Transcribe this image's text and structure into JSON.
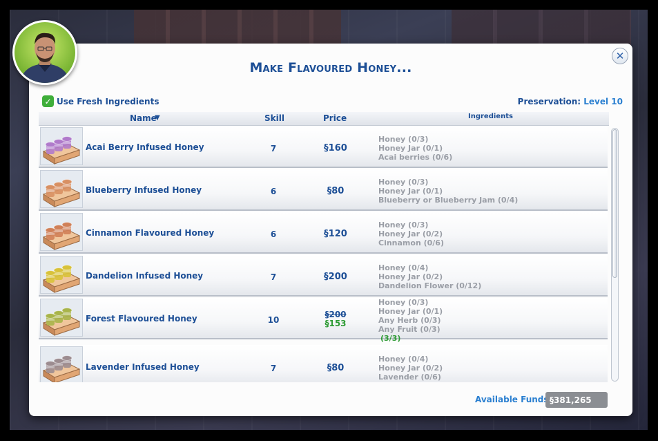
{
  "dialog": {
    "title": "Make Flavoured Honey...",
    "close_icon": "✕",
    "currency_symbol": "§"
  },
  "options": {
    "fresh_ingredients_label": "Use Fresh Ingredients",
    "fresh_ingredients_checked": true,
    "checkmark_icon": "✓",
    "preservation_label": "Preservation:",
    "preservation_value": "Level 10"
  },
  "table": {
    "headers": {
      "name": "Name",
      "sort_icon": "▼",
      "skill": "Skill",
      "price": "Price",
      "ingredients": "Ingredients"
    },
    "rows": [
      {
        "name": "Acai Berry Infused Honey",
        "skill": "7",
        "price": "§160",
        "jar_color": "#b07acb",
        "ingredients": [
          "Honey (0/3)",
          "Honey Jar (0/1)",
          "Acai berries (0/6)"
        ]
      },
      {
        "name": "Blueberry Infused Honey",
        "skill": "6",
        "price": "§80",
        "jar_color": "#d89063",
        "ingredients": [
          "Honey (0/3)",
          "Honey Jar (0/1)",
          "Blueberry or Blueberry Jam (0/4)"
        ]
      },
      {
        "name": "Cinnamon Flavoured Honey",
        "skill": "6",
        "price": "§120",
        "jar_color": "#d08058",
        "ingredients": [
          "Honey (0/3)",
          "Honey Jar (0/2)",
          "Cinnamon (0/6)"
        ]
      },
      {
        "name": "Dandelion Infused Honey",
        "skill": "7",
        "price": "§200",
        "jar_color": "#d8c23a",
        "ingredients": [
          "Honey (0/4)",
          "Honey Jar (0/2)",
          "Dandelion Flower (0/12)"
        ]
      },
      {
        "name": "Forest Flavoured Honey",
        "skill": "10",
        "price_old": "§200",
        "price_new": "§153",
        "jar_color": "#a8b44a",
        "ingredients": [
          "Honey (0/3)",
          "Honey Jar (0/1)",
          "Any Herb (0/3)",
          "Any Fruit (0/3)"
        ],
        "ingredients_available": "(3/3)"
      },
      {
        "name": "Lavender Infused Honey",
        "skill": "7",
        "price": "§80",
        "jar_color": "#9c8c90",
        "ingredients": [
          "Honey (0/4)",
          "Honey Jar (0/2)",
          "Lavender (0/6)"
        ]
      }
    ]
  },
  "footer": {
    "funds_label": "Available Funds:",
    "funds_value": "§381,265"
  },
  "colors": {
    "accent": "#1d4f96",
    "link": "#2a7fd0",
    "positive": "#2e9b34",
    "muted": "#9a9ea6"
  }
}
